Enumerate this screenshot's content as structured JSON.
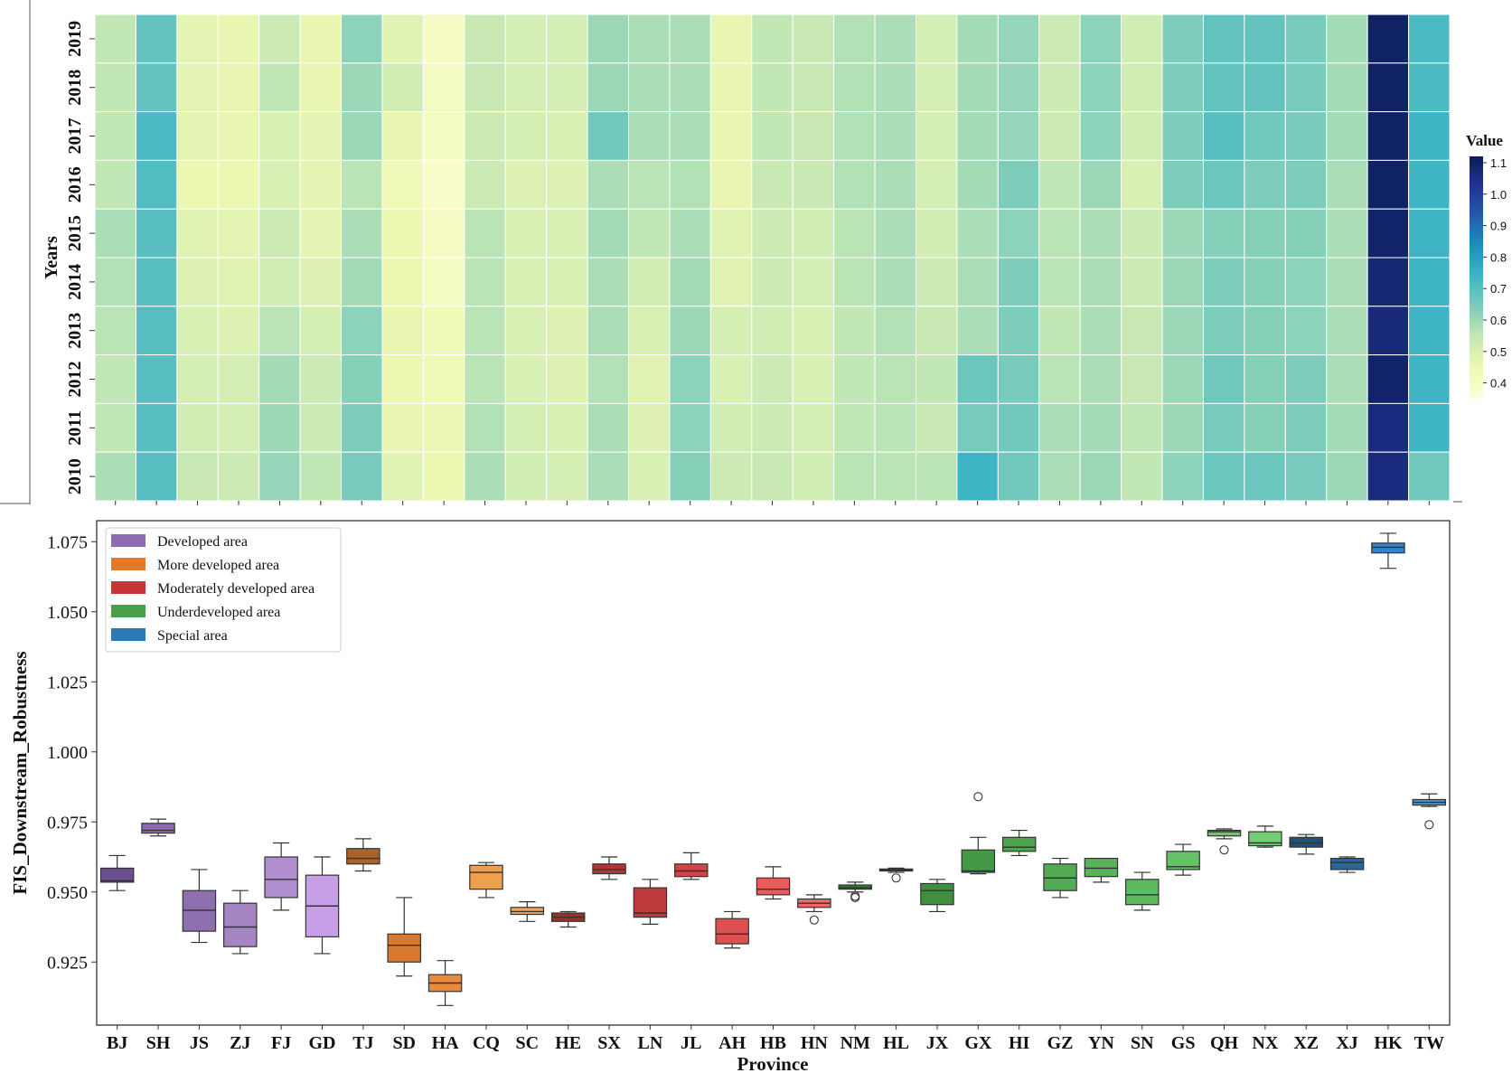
{
  "chart_data": [
    {
      "type": "heatmap",
      "title": "",
      "ylabel": "Years",
      "years": [
        "2019",
        "2018",
        "2017",
        "2016",
        "2015",
        "2014",
        "2013",
        "2012",
        "2011",
        "2010"
      ],
      "provinces": [
        "BJ",
        "SH",
        "JS",
        "ZJ",
        "FJ",
        "GD",
        "TJ",
        "SD",
        "HA",
        "CQ",
        "SC",
        "HE",
        "SX",
        "LN",
        "JL",
        "AH",
        "HB",
        "HN",
        "NM",
        "HL",
        "JX",
        "GX",
        "HI",
        "GZ",
        "YN",
        "SN",
        "GS",
        "QH",
        "NX",
        "XZ",
        "XJ",
        "HK",
        "TW"
      ],
      "values": [
        [
          0.55,
          0.68,
          0.47,
          0.46,
          0.53,
          0.46,
          0.62,
          0.48,
          0.4,
          0.54,
          0.51,
          0.51,
          0.6,
          0.58,
          0.58,
          0.46,
          0.55,
          0.54,
          0.57,
          0.58,
          0.51,
          0.59,
          0.61,
          0.53,
          0.62,
          0.52,
          0.64,
          0.68,
          0.68,
          0.65,
          0.59,
          1.1,
          0.72
        ],
        [
          0.55,
          0.68,
          0.47,
          0.46,
          0.55,
          0.46,
          0.6,
          0.52,
          0.41,
          0.54,
          0.51,
          0.51,
          0.6,
          0.58,
          0.58,
          0.46,
          0.55,
          0.54,
          0.57,
          0.58,
          0.51,
          0.59,
          0.61,
          0.53,
          0.62,
          0.52,
          0.64,
          0.68,
          0.68,
          0.65,
          0.59,
          1.1,
          0.72
        ],
        [
          0.55,
          0.72,
          0.47,
          0.46,
          0.5,
          0.47,
          0.6,
          0.46,
          0.41,
          0.53,
          0.51,
          0.5,
          0.66,
          0.58,
          0.58,
          0.46,
          0.55,
          0.54,
          0.57,
          0.58,
          0.51,
          0.59,
          0.61,
          0.53,
          0.62,
          0.52,
          0.64,
          0.7,
          0.66,
          0.65,
          0.59,
          1.1,
          0.74
        ],
        [
          0.55,
          0.71,
          0.45,
          0.45,
          0.5,
          0.47,
          0.56,
          0.43,
          0.39,
          0.53,
          0.49,
          0.49,
          0.58,
          0.56,
          0.57,
          0.46,
          0.54,
          0.54,
          0.57,
          0.58,
          0.51,
          0.59,
          0.64,
          0.55,
          0.6,
          0.5,
          0.64,
          0.67,
          0.64,
          0.64,
          0.58,
          1.1,
          0.74
        ],
        [
          0.58,
          0.7,
          0.48,
          0.47,
          0.53,
          0.47,
          0.58,
          0.45,
          0.4,
          0.56,
          0.5,
          0.5,
          0.59,
          0.55,
          0.58,
          0.48,
          0.53,
          0.52,
          0.56,
          0.58,
          0.52,
          0.58,
          0.62,
          0.56,
          0.58,
          0.53,
          0.6,
          0.63,
          0.63,
          0.63,
          0.58,
          1.09,
          0.74
        ],
        [
          0.57,
          0.7,
          0.49,
          0.48,
          0.52,
          0.49,
          0.59,
          0.45,
          0.41,
          0.56,
          0.5,
          0.5,
          0.58,
          0.52,
          0.59,
          0.48,
          0.53,
          0.51,
          0.56,
          0.58,
          0.53,
          0.58,
          0.64,
          0.56,
          0.58,
          0.53,
          0.6,
          0.64,
          0.63,
          0.62,
          0.58,
          1.08,
          0.74
        ],
        [
          0.56,
          0.7,
          0.5,
          0.49,
          0.56,
          0.51,
          0.62,
          0.46,
          0.43,
          0.56,
          0.5,
          0.49,
          0.58,
          0.5,
          0.6,
          0.51,
          0.52,
          0.5,
          0.55,
          0.57,
          0.54,
          0.58,
          0.64,
          0.55,
          0.58,
          0.54,
          0.6,
          0.64,
          0.63,
          0.62,
          0.58,
          1.07,
          0.74
        ],
        [
          0.55,
          0.7,
          0.51,
          0.51,
          0.59,
          0.53,
          0.63,
          0.45,
          0.43,
          0.56,
          0.5,
          0.49,
          0.57,
          0.48,
          0.62,
          0.5,
          0.53,
          0.5,
          0.55,
          0.56,
          0.55,
          0.67,
          0.65,
          0.56,
          0.58,
          0.54,
          0.6,
          0.66,
          0.63,
          0.64,
          0.58,
          1.09,
          0.74
        ],
        [
          0.55,
          0.7,
          0.52,
          0.51,
          0.6,
          0.53,
          0.64,
          0.46,
          0.44,
          0.57,
          0.51,
          0.5,
          0.58,
          0.49,
          0.62,
          0.52,
          0.53,
          0.51,
          0.55,
          0.56,
          0.54,
          0.65,
          0.66,
          0.58,
          0.59,
          0.55,
          0.6,
          0.65,
          0.63,
          0.64,
          0.59,
          1.06,
          0.74
        ],
        [
          0.58,
          0.7,
          0.54,
          0.53,
          0.61,
          0.55,
          0.65,
          0.48,
          0.45,
          0.58,
          0.52,
          0.51,
          0.58,
          0.5,
          0.63,
          0.53,
          0.54,
          0.52,
          0.56,
          0.56,
          0.56,
          0.74,
          0.66,
          0.58,
          0.6,
          0.55,
          0.62,
          0.67,
          0.67,
          0.65,
          0.6,
          1.06,
          0.66
        ]
      ],
      "colorbar": {
        "label": "Value",
        "min": 0.35,
        "max": 1.12,
        "ticks": [
          1.1,
          1.0,
          0.9,
          0.8,
          0.7,
          0.6,
          0.5,
          0.4
        ],
        "tick_labels": [
          "1.1",
          "1.0",
          "0.9",
          "0.8",
          "0.7",
          "0.6",
          "0.5",
          "0.4"
        ],
        "colors": [
          "#ffffd9",
          "#edf8b1",
          "#c7e9b4",
          "#7fcdbb",
          "#41b6c4",
          "#1d91c0",
          "#225ea8",
          "#253494",
          "#081d58"
        ]
      }
    },
    {
      "type": "box",
      "title": "",
      "xlabel": "Province",
      "ylabel": "FIS_Downstream_Robustness",
      "ylim": [
        0.9025,
        1.0825
      ],
      "yticks": [
        0.925,
        0.95,
        0.975,
        1.0,
        1.025,
        1.05,
        1.075
      ],
      "ytick_labels": [
        "0.925",
        "0.950",
        "0.975",
        "1.000",
        "1.025",
        "1.050",
        "1.075"
      ],
      "legend": {
        "placement": "upper-left",
        "entries": [
          {
            "label": "Developed area",
            "color": "#8c6bb1"
          },
          {
            "label": "More developed area",
            "color": "#e6782a"
          },
          {
            "label": "Moderately developed area",
            "color": "#c63636"
          },
          {
            "label": "Underdeveloped area",
            "color": "#4aa04a"
          },
          {
            "label": "Special area",
            "color": "#2d78b7"
          }
        ]
      },
      "boxes": [
        {
          "name": "BJ",
          "color": "#6a4f8f",
          "whisker_low": 0.9505,
          "q1": 0.9535,
          "median": 0.954,
          "q3": 0.9585,
          "whisker_high": 0.963,
          "outliers": []
        },
        {
          "name": "SH",
          "color": "#8a6aad",
          "whisker_low": 0.97,
          "q1": 0.971,
          "median": 0.972,
          "q3": 0.9745,
          "whisker_high": 0.976,
          "outliers": []
        },
        {
          "name": "JS",
          "color": "#8d6eaf",
          "whisker_low": 0.932,
          "q1": 0.936,
          "median": 0.9435,
          "q3": 0.9505,
          "whisker_high": 0.958,
          "outliers": []
        },
        {
          "name": "ZJ",
          "color": "#a585c2",
          "whisker_low": 0.928,
          "q1": 0.9305,
          "median": 0.9375,
          "q3": 0.946,
          "whisker_high": 0.9505,
          "outliers": []
        },
        {
          "name": "FJ",
          "color": "#b08ed0",
          "whisker_low": 0.9435,
          "q1": 0.948,
          "median": 0.9545,
          "q3": 0.9625,
          "whisker_high": 0.9675,
          "outliers": []
        },
        {
          "name": "GD",
          "color": "#c79fe6",
          "whisker_low": 0.928,
          "q1": 0.934,
          "median": 0.945,
          "q3": 0.956,
          "whisker_high": 0.9625,
          "outliers": []
        },
        {
          "name": "TJ",
          "color": "#a8632d",
          "whisker_low": 0.9575,
          "q1": 0.96,
          "median": 0.962,
          "q3": 0.9655,
          "whisker_high": 0.969,
          "outliers": []
        },
        {
          "name": "SD",
          "color": "#d9782e",
          "whisker_low": 0.92,
          "q1": 0.925,
          "median": 0.931,
          "q3": 0.935,
          "whisker_high": 0.948,
          "outliers": []
        },
        {
          "name": "HA",
          "color": "#e88a3a",
          "whisker_low": 0.9095,
          "q1": 0.9145,
          "median": 0.9175,
          "q3": 0.9205,
          "whisker_high": 0.9255,
          "outliers": []
        },
        {
          "name": "CQ",
          "color": "#eea04e",
          "whisker_low": 0.948,
          "q1": 0.951,
          "median": 0.957,
          "q3": 0.9595,
          "whisker_high": 0.9605,
          "outliers": []
        },
        {
          "name": "SC",
          "color": "#f0a95a",
          "whisker_low": 0.9395,
          "q1": 0.942,
          "median": 0.943,
          "q3": 0.9445,
          "whisker_high": 0.9465,
          "outliers": []
        },
        {
          "name": "HE",
          "color": "#9e2f2f",
          "whisker_low": 0.9375,
          "q1": 0.9395,
          "median": 0.941,
          "q3": 0.9425,
          "whisker_high": 0.943,
          "outliers": []
        },
        {
          "name": "SX",
          "color": "#b63434",
          "whisker_low": 0.9545,
          "q1": 0.9565,
          "median": 0.958,
          "q3": 0.96,
          "whisker_high": 0.9625,
          "outliers": []
        },
        {
          "name": "LN",
          "color": "#bf3a3a",
          "whisker_low": 0.9385,
          "q1": 0.941,
          "median": 0.9425,
          "q3": 0.9515,
          "whisker_high": 0.9545,
          "outliers": []
        },
        {
          "name": "JL",
          "color": "#d14545",
          "whisker_low": 0.9545,
          "q1": 0.9555,
          "median": 0.9575,
          "q3": 0.96,
          "whisker_high": 0.964,
          "outliers": []
        },
        {
          "name": "AH",
          "color": "#e04f4f",
          "whisker_low": 0.93,
          "q1": 0.9315,
          "median": 0.935,
          "q3": 0.9405,
          "whisker_high": 0.943,
          "outliers": []
        },
        {
          "name": "HB",
          "color": "#ea5a5a",
          "whisker_low": 0.9475,
          "q1": 0.949,
          "median": 0.951,
          "q3": 0.955,
          "whisker_high": 0.959,
          "outliers": []
        },
        {
          "name": "HN",
          "color": "#ef6767",
          "whisker_low": 0.943,
          "q1": 0.9445,
          "median": 0.946,
          "q3": 0.9475,
          "whisker_high": 0.949,
          "outliers": [
            0.94
          ]
        },
        {
          "name": "NM",
          "color": "#2f7d2f",
          "whisker_low": 0.95,
          "q1": 0.951,
          "median": 0.9515,
          "q3": 0.9525,
          "whisker_high": 0.9535,
          "outliers": [
            0.9485,
            0.948
          ]
        },
        {
          "name": "HL",
          "color": "#3a8a3a",
          "whisker_low": 0.957,
          "q1": 0.9575,
          "median": 0.9578,
          "q3": 0.9582,
          "whisker_high": 0.9585,
          "outliers": [
            0.955
          ]
        },
        {
          "name": "JX",
          "color": "#3e8f3e",
          "whisker_low": 0.943,
          "q1": 0.9455,
          "median": 0.9505,
          "q3": 0.953,
          "whisker_high": 0.9545,
          "outliers": []
        },
        {
          "name": "GX",
          "color": "#459845",
          "whisker_low": 0.9565,
          "q1": 0.957,
          "median": 0.9575,
          "q3": 0.965,
          "whisker_high": 0.9695,
          "outliers": [
            0.984
          ]
        },
        {
          "name": "HI",
          "color": "#4ea34e",
          "whisker_low": 0.963,
          "q1": 0.9645,
          "median": 0.966,
          "q3": 0.9695,
          "whisker_high": 0.972,
          "outliers": []
        },
        {
          "name": "GZ",
          "color": "#54ab54",
          "whisker_low": 0.948,
          "q1": 0.9505,
          "median": 0.955,
          "q3": 0.96,
          "whisker_high": 0.962,
          "outliers": []
        },
        {
          "name": "YN",
          "color": "#5ab35a",
          "whisker_low": 0.9535,
          "q1": 0.9555,
          "median": 0.9585,
          "q3": 0.962,
          "whisker_high": 0.962,
          "outliers": []
        },
        {
          "name": "SN",
          "color": "#5fb95f",
          "whisker_low": 0.9435,
          "q1": 0.9455,
          "median": 0.949,
          "q3": 0.9545,
          "whisker_high": 0.957,
          "outliers": []
        },
        {
          "name": "GS",
          "color": "#66c066",
          "whisker_low": 0.956,
          "q1": 0.958,
          "median": 0.959,
          "q3": 0.9645,
          "whisker_high": 0.967,
          "outliers": []
        },
        {
          "name": "QH",
          "color": "#6cc56c",
          "whisker_low": 0.969,
          "q1": 0.97,
          "median": 0.9715,
          "q3": 0.972,
          "whisker_high": 0.9725,
          "outliers": [
            0.965
          ]
        },
        {
          "name": "NX",
          "color": "#74cc74",
          "whisker_low": 0.966,
          "q1": 0.9665,
          "median": 0.9675,
          "q3": 0.9715,
          "whisker_high": 0.9735,
          "outliers": []
        },
        {
          "name": "XZ",
          "color": "#234f7d",
          "whisker_low": 0.9635,
          "q1": 0.966,
          "median": 0.9675,
          "q3": 0.9695,
          "whisker_high": 0.9705,
          "outliers": []
        },
        {
          "name": "XJ",
          "color": "#2a65a0",
          "whisker_low": 0.957,
          "q1": 0.958,
          "median": 0.9605,
          "q3": 0.962,
          "whisker_high": 0.9625,
          "outliers": []
        },
        {
          "name": "HK",
          "color": "#3582c6",
          "whisker_low": 1.0655,
          "q1": 1.071,
          "median": 1.073,
          "q3": 1.0745,
          "whisker_high": 1.078,
          "outliers": []
        },
        {
          "name": "TW",
          "color": "#4a95d4",
          "whisker_low": 0.9805,
          "q1": 0.981,
          "median": 0.982,
          "q3": 0.983,
          "whisker_high": 0.985,
          "outliers": [
            0.974
          ]
        }
      ]
    }
  ]
}
